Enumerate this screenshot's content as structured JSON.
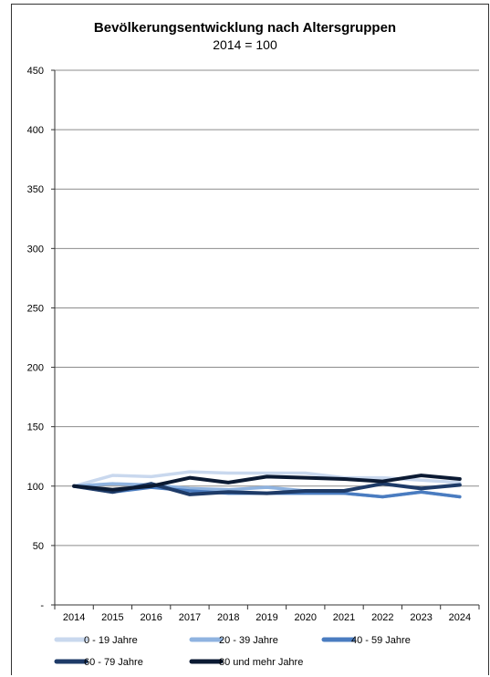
{
  "chart_data": {
    "type": "line",
    "title": "Bevölkerungsentwicklung nach Altersgruppen",
    "subtitle": "2014 = 100",
    "xlabel": "",
    "ylabel": "",
    "x": [
      "2014",
      "2015",
      "2016",
      "2017",
      "2018",
      "2019",
      "2020",
      "2021",
      "2022",
      "2023",
      "2024"
    ],
    "ylim": [
      0,
      450
    ],
    "yticks": [
      0,
      50,
      100,
      150,
      200,
      250,
      300,
      350,
      400,
      450
    ],
    "ytick_labels": [
      "-",
      "50",
      "100",
      "150",
      "200",
      "250",
      "300",
      "350",
      "400",
      "450"
    ],
    "grid": true,
    "legend_position": "bottom",
    "series": [
      {
        "name": "0 - 19 Jahre",
        "color": "#c9d8ee",
        "values": [
          100,
          109,
          108,
          112,
          111,
          111,
          111,
          107,
          107,
          105,
          103
        ]
      },
      {
        "name": "20 - 39 Jahre",
        "color": "#8fb3e0",
        "values": [
          100,
          102,
          101,
          98,
          97,
          99,
          96,
          94,
          91,
          95,
          91
        ]
      },
      {
        "name": "40 - 59 Jahre",
        "color": "#4a7cc0",
        "values": [
          100,
          95,
          99,
          96,
          94,
          94,
          94,
          94,
          91,
          95,
          91
        ]
      },
      {
        "name": "60 - 79 Jahre",
        "color": "#1e3b68",
        "values": [
          100,
          95,
          102,
          93,
          95,
          94,
          96,
          96,
          102,
          98,
          101
        ]
      },
      {
        "name": "80 und mehr Jahre",
        "color": "#0b1a33",
        "values": [
          100,
          97,
          100,
          107,
          103,
          108,
          107,
          106,
          104,
          109,
          106
        ]
      }
    ]
  }
}
